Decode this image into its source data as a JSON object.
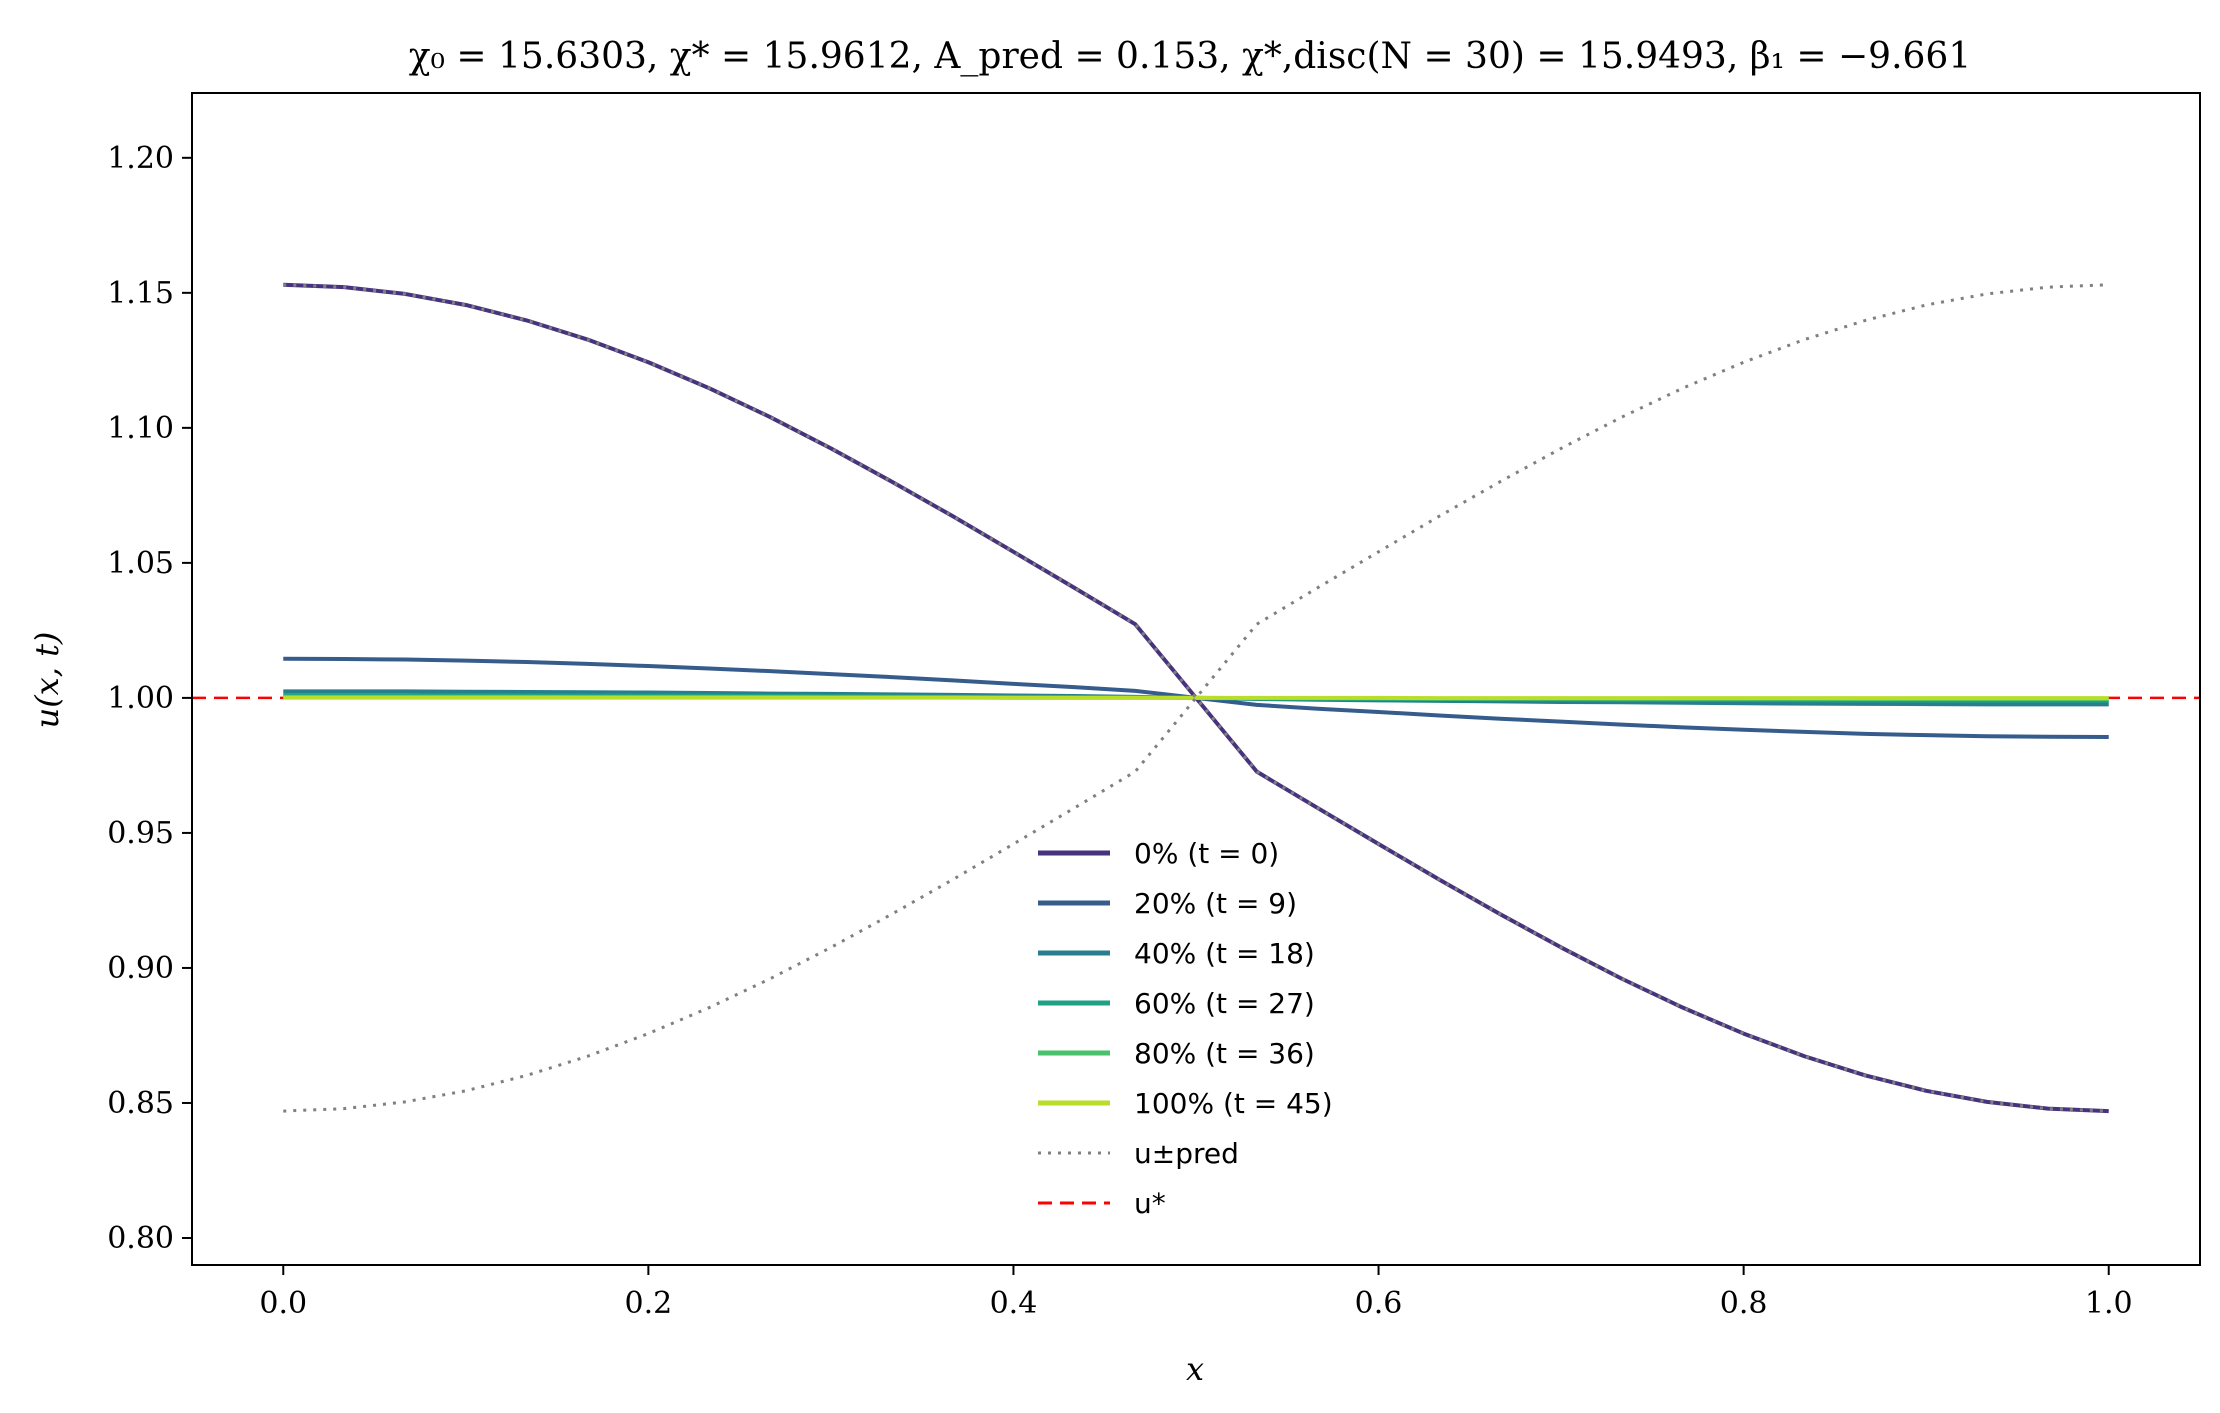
{
  "chart_data": {
    "type": "line",
    "title": "χ₀ = 15.6303,  χ* = 15.9612,  A_pred = 0.153,  χ*,disc(N = 30) = 15.9493,  β₁ = −9.661",
    "xlabel": "x",
    "ylabel": "u(x, t)",
    "xlim": [
      -0.05,
      1.05
    ],
    "ylim": [
      0.79,
      1.224
    ],
    "x_ticks": [
      0.0,
      0.2,
      0.4,
      0.6,
      0.8,
      1.0
    ],
    "x_tick_labels": [
      "0.0",
      "0.2",
      "0.4",
      "0.6",
      "0.8",
      "1.0"
    ],
    "y_ticks": [
      0.8,
      0.85,
      0.9,
      0.95,
      1.0,
      1.05,
      1.1,
      1.15,
      1.2
    ],
    "y_tick_labels": [
      "0.80",
      "0.85",
      "0.90",
      "0.95",
      "1.00",
      "1.05",
      "1.10",
      "1.15",
      "1.20"
    ],
    "grid": false,
    "legend_position": "lower-center",
    "x": [
      0.0,
      0.0333,
      0.0667,
      0.1,
      0.1333,
      0.1667,
      0.2,
      0.2333,
      0.2667,
      0.3,
      0.3333,
      0.3667,
      0.4,
      0.4333,
      0.4667,
      0.5,
      0.5333,
      0.5667,
      0.6,
      0.6333,
      0.6667,
      0.7,
      0.7333,
      0.7667,
      0.8,
      0.8333,
      0.8667,
      0.9,
      0.9333,
      0.9667,
      1.0
    ],
    "series": [
      {
        "name": "0% (t = 0)",
        "color": "#46327e",
        "style": "solid",
        "values": [
          1.153,
          1.1521,
          1.1496,
          1.1455,
          1.1398,
          1.1327,
          1.1243,
          1.1147,
          1.104,
          1.0924,
          1.0801,
          1.0673,
          1.0541,
          1.0408,
          1.0273,
          1.0,
          0.9727,
          0.9592,
          0.9459,
          0.9327,
          0.9199,
          0.9076,
          0.896,
          0.8853,
          0.8757,
          0.8673,
          0.8602,
          0.8545,
          0.8504,
          0.8479,
          0.847
        ]
      },
      {
        "name": "20% (t = 9)",
        "color": "#365c8d",
        "style": "solid",
        "values": [
          1.0145,
          1.0144,
          1.0142,
          1.0138,
          1.0133,
          1.0126,
          1.0118,
          1.0109,
          1.0099,
          1.0088,
          1.0077,
          1.0065,
          1.0052,
          1.004,
          1.0026,
          1.0,
          0.9974,
          0.996,
          0.9948,
          0.9935,
          0.9923,
          0.9912,
          0.9901,
          0.9891,
          0.9882,
          0.9874,
          0.9867,
          0.9862,
          0.9858,
          0.9856,
          0.9855
        ]
      },
      {
        "name": "40% (t = 18)",
        "color": "#277f8e",
        "style": "solid",
        "values": [
          1.0024,
          1.0024,
          1.0024,
          1.0023,
          1.0022,
          1.0021,
          1.002,
          1.0018,
          1.0016,
          1.0015,
          1.0013,
          1.0011,
          1.0009,
          1.0007,
          1.0004,
          1.0,
          0.9996,
          0.9993,
          0.9991,
          0.9989,
          0.9987,
          0.9985,
          0.9984,
          0.9982,
          0.998,
          0.9979,
          0.9978,
          0.9977,
          0.9976,
          0.9976,
          0.9976
        ]
      },
      {
        "name": "60% (t = 27)",
        "color": "#1fa187",
        "style": "solid",
        "values": [
          1.001,
          1.001,
          1.001,
          1.001,
          1.0009,
          1.0009,
          1.0008,
          1.0008,
          1.0007,
          1.0006,
          1.0005,
          1.0004,
          1.0004,
          1.0003,
          1.0002,
          1.0,
          0.9998,
          0.9997,
          0.9996,
          0.9996,
          0.9995,
          0.9994,
          0.9993,
          0.9992,
          0.9992,
          0.9991,
          0.9991,
          0.999,
          0.999,
          0.999,
          0.999
        ]
      },
      {
        "name": "80% (t = 36)",
        "color": "#4ac16d",
        "style": "solid",
        "values": [
          1.0004,
          1.0004,
          1.0004,
          1.0004,
          1.0004,
          1.0003,
          1.0003,
          1.0003,
          1.0003,
          1.0002,
          1.0002,
          1.0002,
          1.0001,
          1.0001,
          1.0001,
          1.0,
          0.9999,
          0.9999,
          0.9999,
          0.9998,
          0.9998,
          0.9998,
          0.9997,
          0.9997,
          0.9997,
          0.9997,
          0.9996,
          0.9996,
          0.9996,
          0.9996,
          0.9996
        ]
      },
      {
        "name": "100% (t = 45)",
        "color": "#b8de29",
        "style": "solid",
        "values": [
          1.0001,
          1.0001,
          1.0001,
          1.0001,
          1.0001,
          1.0001,
          1.0001,
          1.0001,
          1.0001,
          1.0001,
          1.0001,
          1.0001,
          1.0,
          1.0,
          1.0,
          1.0,
          1.0,
          1.0,
          1.0,
          0.9999,
          0.9999,
          0.9999,
          0.9999,
          0.9999,
          0.9999,
          0.9999,
          0.9999,
          0.9999,
          0.9999,
          0.9999,
          0.9999
        ]
      },
      {
        "name": "u_pred^- (overlay)",
        "color": "#808080",
        "style": "dotted",
        "values": [
          1.153,
          1.1521,
          1.1496,
          1.1455,
          1.1398,
          1.1327,
          1.1243,
          1.1147,
          1.104,
          1.0924,
          1.0801,
          1.0673,
          1.0541,
          1.0408,
          1.0273,
          1.0,
          0.9727,
          0.9592,
          0.9459,
          0.9327,
          0.9199,
          0.9076,
          0.896,
          0.8853,
          0.8757,
          0.8673,
          0.8602,
          0.8545,
          0.8504,
          0.8479,
          0.847
        ]
      },
      {
        "name": "u_pred^+",
        "color": "#808080",
        "style": "dotted",
        "values": [
          0.847,
          0.8479,
          0.8504,
          0.8545,
          0.8602,
          0.8673,
          0.8757,
          0.8853,
          0.896,
          0.9076,
          0.9199,
          0.9327,
          0.9459,
          0.9592,
          0.9727,
          1.0,
          1.0273,
          1.0408,
          1.0541,
          1.0673,
          1.0801,
          1.0924,
          1.104,
          1.1147,
          1.1243,
          1.1327,
          1.1398,
          1.1455,
          1.1496,
          1.1521,
          1.153
        ]
      }
    ],
    "reference_line": {
      "name": "u*",
      "y": 1.0,
      "color": "#ff0000",
      "style": "dashed"
    },
    "legend": [
      {
        "label": "0% (t = 0)",
        "color": "#46327e",
        "style": "solid"
      },
      {
        "label": "20% (t = 9)",
        "color": "#365c8d",
        "style": "solid"
      },
      {
        "label": "40% (t = 18)",
        "color": "#277f8e",
        "style": "solid"
      },
      {
        "label": "60% (t = 27)",
        "color": "#1fa187",
        "style": "solid"
      },
      {
        "label": "80% (t = 36)",
        "color": "#4ac16d",
        "style": "solid"
      },
      {
        "label": "100% (t = 45)",
        "color": "#b8de29",
        "style": "solid"
      },
      {
        "label": "u±pred",
        "color": "#808080",
        "style": "dotted"
      },
      {
        "label": "u*",
        "color": "#ff0000",
        "style": "dashed"
      }
    ]
  }
}
